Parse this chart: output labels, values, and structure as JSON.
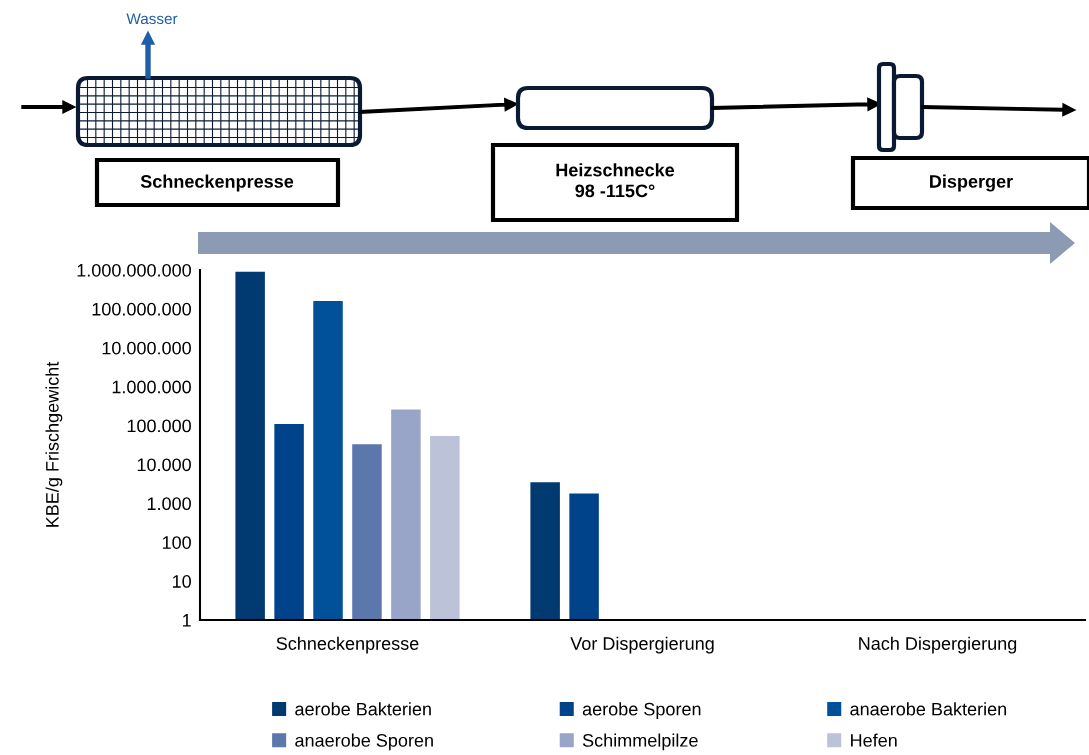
{
  "chart_data": {
    "type": "bar",
    "ylabel": "KBE/g Frischgewicht",
    "categories": [
      "Schneckenpresse",
      "Vor Dispergierung",
      "Nach Dispergierung"
    ],
    "series": [
      {
        "name": "aerobe Bakterien",
        "color": "#003a70",
        "values": [
          900000000,
          3500,
          null
        ]
      },
      {
        "name": "aerobe Sporen",
        "color": "#00438a",
        "values": [
          110000,
          1800,
          null
        ]
      },
      {
        "name": "anaerobe Bakterien",
        "color": "#00519a",
        "values": [
          160000000,
          null,
          null
        ]
      },
      {
        "name": "anaerobe Sporen",
        "color": "#5b77ab",
        "values": [
          33000,
          null,
          null
        ]
      },
      {
        "name": "Schimmelpilze",
        "color": "#98a5c8",
        "values": [
          260000,
          null,
          null
        ]
      },
      {
        "name": "Hefen",
        "color": "#bcc3d8",
        "values": [
          54000,
          null,
          null
        ]
      }
    ],
    "log": "y",
    "ylim": [
      1,
      1000000000
    ],
    "yticks": [
      1,
      10,
      100,
      {
        "value": 1000,
        "label": "1.000"
      },
      {
        "value": 10000,
        "label": "10.000"
      },
      {
        "value": 100000,
        "label": "100.000"
      },
      {
        "value": 1000000,
        "label": "1.000.000"
      },
      {
        "value": 10000000,
        "label": "10.000.000"
      },
      {
        "value": 100000000,
        "label": "100.000.000"
      },
      {
        "value": 1000000000,
        "label": "1.000.000.000"
      }
    ],
    "grid": false,
    "legend": "bottom",
    "annotations": [
      "Wasser",
      "Schneckenpresse",
      "Heizschnecke\n98 -115C°",
      "Disperger"
    ]
  }
}
